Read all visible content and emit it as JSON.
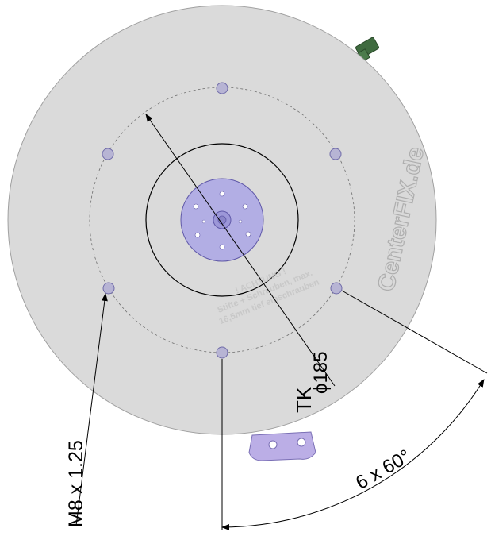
{
  "drawing": {
    "logo": "CenterFIX.de",
    "note_lines": [
      "! ACHTUNG !",
      "Stifte + Schrauben, max.",
      "16,5mm tief einschrauben"
    ],
    "dimensions": {
      "pitch_circle_label": "TK",
      "pitch_circle_value": "ϕ185",
      "thread_label": "M8 x 1.25",
      "angle_label": "6 x 60°"
    },
    "colors": {
      "plate": "#dadada",
      "hub": "#b2aee4",
      "holes": "#b7b4d4",
      "bracket": "#bbaee6",
      "connector": "#3f6b3f"
    }
  }
}
